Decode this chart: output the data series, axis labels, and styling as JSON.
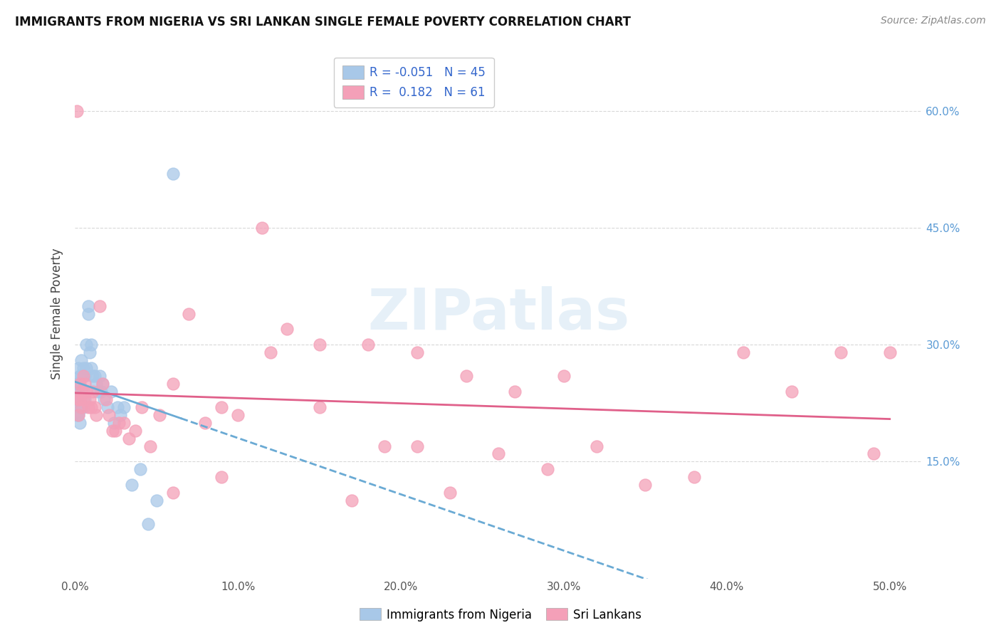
{
  "title": "IMMIGRANTS FROM NIGERIA VS SRI LANKAN SINGLE FEMALE POVERTY CORRELATION CHART",
  "source": "Source: ZipAtlas.com",
  "ylabel": "Single Female Poverty",
  "y_ticks": [
    0.15,
    0.3,
    0.45,
    0.6
  ],
  "y_tick_labels": [
    "15.0%",
    "30.0%",
    "45.0%",
    "60.0%"
  ],
  "x_ticks": [
    0.0,
    0.1,
    0.2,
    0.3,
    0.4,
    0.5
  ],
  "x_tick_labels": [
    "0.0%",
    "10.0%",
    "20.0%",
    "30.0%",
    "40.0%",
    "50.0%"
  ],
  "xlim": [
    0.0,
    0.52
  ],
  "ylim": [
    0.0,
    0.68
  ],
  "legend_label1": "Immigrants from Nigeria",
  "legend_label2": "Sri Lankans",
  "color_nigeria": "#a8c8e8",
  "color_srilanka": "#f4a0b8",
  "trendline_nigeria_solid_color": "#6aaad4",
  "trendline_srilanka_color": "#e0608a",
  "watermark": "ZIPatlas",
  "background_color": "#ffffff",
  "grid_color": "#d8d8d8",
  "nigeria_x": [
    0.001,
    0.001,
    0.001,
    0.002,
    0.002,
    0.002,
    0.002,
    0.003,
    0.003,
    0.003,
    0.003,
    0.004,
    0.004,
    0.004,
    0.005,
    0.005,
    0.005,
    0.006,
    0.006,
    0.007,
    0.007,
    0.008,
    0.008,
    0.009,
    0.01,
    0.01,
    0.011,
    0.012,
    0.013,
    0.014,
    0.015,
    0.016,
    0.017,
    0.018,
    0.02,
    0.022,
    0.024,
    0.026,
    0.028,
    0.03,
    0.035,
    0.04,
    0.045,
    0.05,
    0.06
  ],
  "nigeria_y": [
    0.25,
    0.23,
    0.21,
    0.27,
    0.25,
    0.23,
    0.21,
    0.26,
    0.24,
    0.22,
    0.2,
    0.28,
    0.26,
    0.22,
    0.27,
    0.24,
    0.22,
    0.26,
    0.23,
    0.3,
    0.27,
    0.35,
    0.34,
    0.29,
    0.3,
    0.27,
    0.26,
    0.26,
    0.25,
    0.24,
    0.26,
    0.24,
    0.25,
    0.23,
    0.22,
    0.24,
    0.2,
    0.22,
    0.21,
    0.22,
    0.12,
    0.14,
    0.07,
    0.1,
    0.52
  ],
  "srilanka_x": [
    0.001,
    0.002,
    0.002,
    0.003,
    0.003,
    0.004,
    0.004,
    0.005,
    0.005,
    0.006,
    0.007,
    0.008,
    0.009,
    0.01,
    0.011,
    0.012,
    0.013,
    0.015,
    0.017,
    0.019,
    0.021,
    0.023,
    0.025,
    0.027,
    0.03,
    0.033,
    0.037,
    0.041,
    0.046,
    0.052,
    0.06,
    0.07,
    0.08,
    0.09,
    0.1,
    0.115,
    0.13,
    0.15,
    0.17,
    0.19,
    0.21,
    0.23,
    0.26,
    0.29,
    0.32,
    0.35,
    0.38,
    0.41,
    0.44,
    0.47,
    0.49,
    0.5,
    0.3,
    0.27,
    0.24,
    0.21,
    0.18,
    0.15,
    0.12,
    0.09,
    0.06
  ],
  "srilanka_y": [
    0.6,
    0.23,
    0.21,
    0.25,
    0.23,
    0.24,
    0.22,
    0.26,
    0.23,
    0.25,
    0.24,
    0.22,
    0.23,
    0.22,
    0.24,
    0.22,
    0.21,
    0.35,
    0.25,
    0.23,
    0.21,
    0.19,
    0.19,
    0.2,
    0.2,
    0.18,
    0.19,
    0.22,
    0.17,
    0.21,
    0.25,
    0.34,
    0.2,
    0.22,
    0.21,
    0.45,
    0.32,
    0.22,
    0.1,
    0.17,
    0.17,
    0.11,
    0.16,
    0.14,
    0.17,
    0.12,
    0.13,
    0.29,
    0.24,
    0.29,
    0.16,
    0.29,
    0.26,
    0.24,
    0.26,
    0.29,
    0.3,
    0.3,
    0.29,
    0.13,
    0.11
  ]
}
